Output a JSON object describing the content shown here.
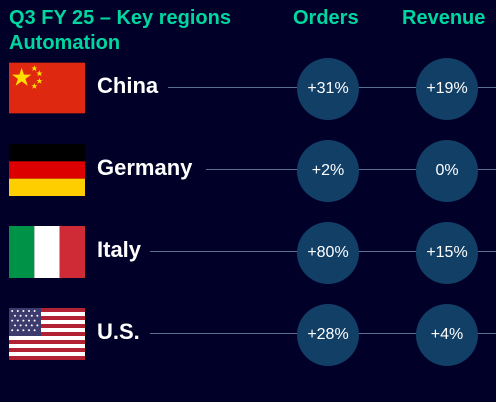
{
  "header": {
    "title_line1": "Q3 FY 25 – Key regions",
    "title_line2": "Automation",
    "orders_label": "Orders",
    "revenue_label": "Revenue"
  },
  "colors": {
    "background": "#000028",
    "accent": "#00d7a0",
    "circle": "#123f66",
    "connector": "#5a7090",
    "text": "#ffffff"
  },
  "regions": [
    {
      "country": "China",
      "flag": "china-flag-icon",
      "orders": "+31%",
      "revenue": "+19%"
    },
    {
      "country": "Germany",
      "flag": "germany-flag-icon",
      "orders": "+2%",
      "revenue": "0%"
    },
    {
      "country": "Italy",
      "flag": "italy-flag-icon",
      "orders": "+80%",
      "revenue": "+15%"
    },
    {
      "country": "U.S.",
      "flag": "us-flag-icon",
      "orders": "+28%",
      "revenue": "+4%"
    }
  ]
}
